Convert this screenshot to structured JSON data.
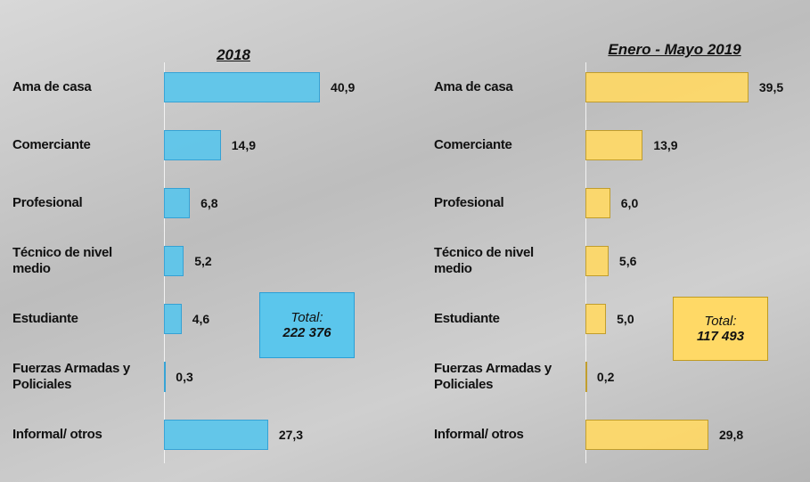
{
  "chart_data": [
    {
      "type": "bar",
      "title": "2018",
      "categories": [
        "Ama de casa",
        "Comerciante",
        "Profesional",
        "Técnico de nivel medio",
        "Estudiante",
        "Fuerzas Armadas y Policiales",
        "Informal/ otros"
      ],
      "values": [
        40.9,
        14.9,
        6.8,
        5.2,
        4.6,
        0.3,
        27.3
      ],
      "value_labels": [
        "40,9",
        "14,9",
        "6,8",
        "5,2",
        "4,6",
        "0,3",
        "27,3"
      ],
      "color": "#5bc6ec",
      "total_label": "Total:",
      "total_value": "222 376"
    },
    {
      "type": "bar",
      "title": "Enero - Mayo 2019",
      "categories": [
        "Ama de casa",
        "Comerciante",
        "Profesional",
        "Técnico de nivel medio",
        "Estudiante",
        "Fuerzas Armadas y Policiales",
        "Informal/ otros"
      ],
      "values": [
        39.5,
        13.9,
        6.0,
        5.6,
        5.0,
        0.2,
        29.8
      ],
      "value_labels": [
        "39,5",
        "13,9",
        "6,0",
        "5,6",
        "5,0",
        "0,2",
        "29,8"
      ],
      "color": "#ffd966",
      "total_label": "Total:",
      "total_value": "117 493"
    }
  ]
}
